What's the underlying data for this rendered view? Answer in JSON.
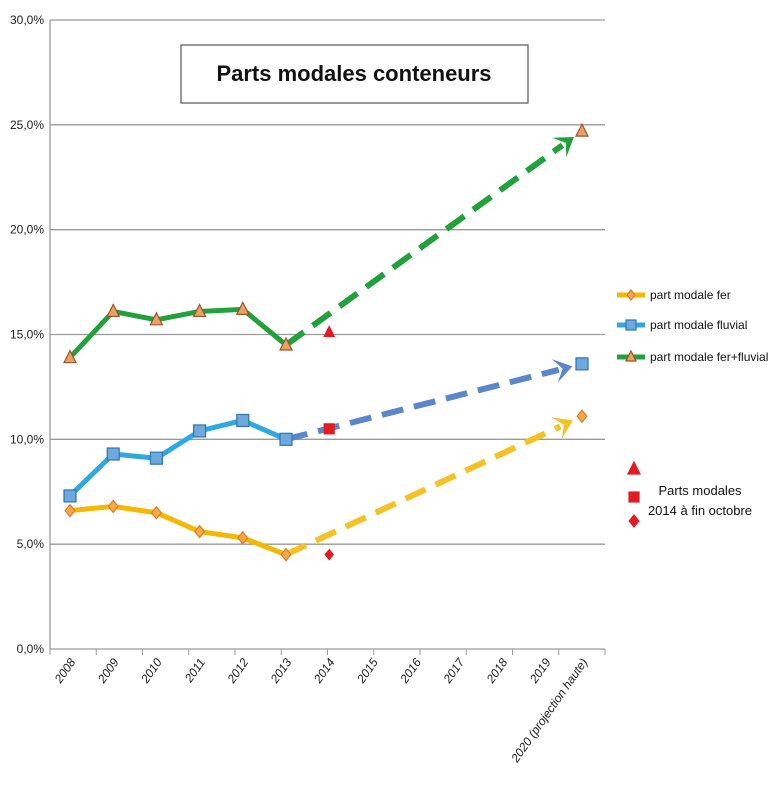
{
  "chart_data": {
    "type": "line",
    "title": "Parts modales conteneurs",
    "categories": [
      "2008",
      "2009",
      "2010",
      "2011",
      "2012",
      "2013",
      "2014",
      "2015",
      "2016",
      "2017",
      "2018",
      "2019",
      "2020 (projection haute)"
    ],
    "y_ticks": [
      "0,0%",
      "5,0%",
      "10,0%",
      "15,0%",
      "20,0%",
      "25,0%",
      "30,0%"
    ],
    "ylim": [
      0,
      30
    ],
    "grid": true,
    "legend_position": "right",
    "series": [
      {
        "name": "part modale fer",
        "color": "#F5B800",
        "marker": "diamond",
        "values": [
          6.6,
          6.8,
          6.5,
          5.6,
          5.3,
          4.5,
          null,
          null,
          null,
          null,
          null,
          null,
          11.1
        ]
      },
      {
        "name": "part modale fluvial",
        "color": "#2EA8E0",
        "marker": "square",
        "values": [
          7.3,
          9.3,
          9.1,
          10.4,
          10.9,
          10.0,
          null,
          null,
          null,
          null,
          null,
          null,
          13.6
        ]
      },
      {
        "name": "part modale fer+fluvial %",
        "color": "#22A03B",
        "marker": "triangle",
        "values": [
          13.9,
          16.1,
          15.7,
          16.1,
          16.2,
          14.5,
          null,
          null,
          null,
          null,
          null,
          null,
          24.7
        ]
      }
    ],
    "projections": [
      {
        "series": "part modale fer",
        "color": "#F5C226",
        "from": [
          "2013",
          4.5
        ],
        "to": [
          "2020 (projection haute)",
          11.1
        ]
      },
      {
        "series": "part modale fluvial",
        "color": "#5B86CC",
        "from": [
          "2013",
          10.0
        ],
        "to": [
          "2020 (projection haute)",
          13.6
        ]
      },
      {
        "series": "part modale fer+fluvial %",
        "color": "#22A03B",
        "from": [
          "2013",
          14.5
        ],
        "to": [
          "2020 (projection haute)",
          24.7
        ]
      }
    ],
    "points_2014": {
      "label_lines": [
        "Parts modales",
        "2014 à fin octobre"
      ],
      "color": "#E31C23",
      "values": [
        {
          "marker": "triangle",
          "value": 15.1
        },
        {
          "marker": "square",
          "value": 10.5
        },
        {
          "marker": "diamond",
          "value": 4.5
        }
      ]
    }
  }
}
